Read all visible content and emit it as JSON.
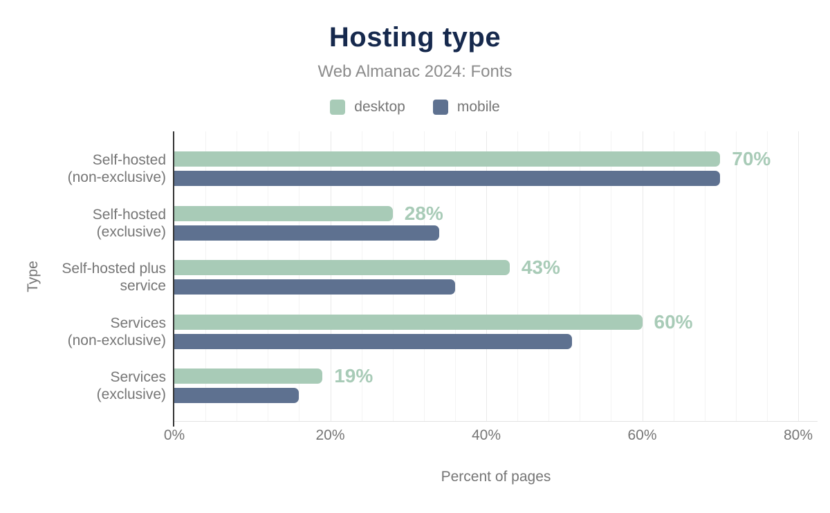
{
  "header": {
    "title": "Hosting type",
    "subtitle": "Web Almanac 2024: Fonts"
  },
  "axes": {
    "x_label": "Percent of pages",
    "y_label": "Type",
    "x_ticks": [
      {
        "value": 0,
        "label": "0%"
      },
      {
        "value": 20,
        "label": "20%"
      },
      {
        "value": 40,
        "label": "40%"
      },
      {
        "value": 60,
        "label": "60%"
      },
      {
        "value": 80,
        "label": "80%"
      }
    ],
    "gridline_step_pct": 4,
    "x_max_pct": 80
  },
  "chart_data": {
    "type": "bar",
    "orientation": "horizontal",
    "title": "Hosting type",
    "subtitle": "Web Almanac 2024: Fonts",
    "xlabel": "Percent of pages",
    "ylabel": "Type",
    "xlim": [
      0,
      80
    ],
    "grid": "vertical-minor",
    "legend_position": "top",
    "categories": [
      "Self-hosted (non-exclusive)",
      "Self-hosted (exclusive)",
      "Self-hosted plus service",
      "Services (non-exclusive)",
      "Services (exclusive)"
    ],
    "category_label_lines": [
      [
        "Self-hosted",
        "(non-exclusive)"
      ],
      [
        "Self-hosted",
        "(exclusive)"
      ],
      [
        "Self-hosted plus",
        "service"
      ],
      [
        "Services",
        "(non-exclusive)"
      ],
      [
        "Services",
        "(exclusive)"
      ]
    ],
    "series": [
      {
        "name": "desktop",
        "color": "#a8cbb7",
        "values": [
          70,
          28,
          43,
          60,
          19
        ],
        "value_labels": [
          "70%",
          "28%",
          "43%",
          "60%",
          "19%"
        ]
      },
      {
        "name": "mobile",
        "color": "#5e7190",
        "values": [
          70,
          34,
          36,
          51,
          16
        ]
      }
    ]
  },
  "colors": {
    "title": "#16294d",
    "subtitle": "#8b8b8b",
    "axis_text": "#757575",
    "axis_line": "#333333",
    "gridline_minor": "#f3f3f3",
    "gridline_major": "#e9e9e9",
    "baseline": "#e3e3e3",
    "desktop_bar": "#a8cbb7",
    "mobile_bar": "#5e7190",
    "value_label": "#a8cbb7"
  }
}
